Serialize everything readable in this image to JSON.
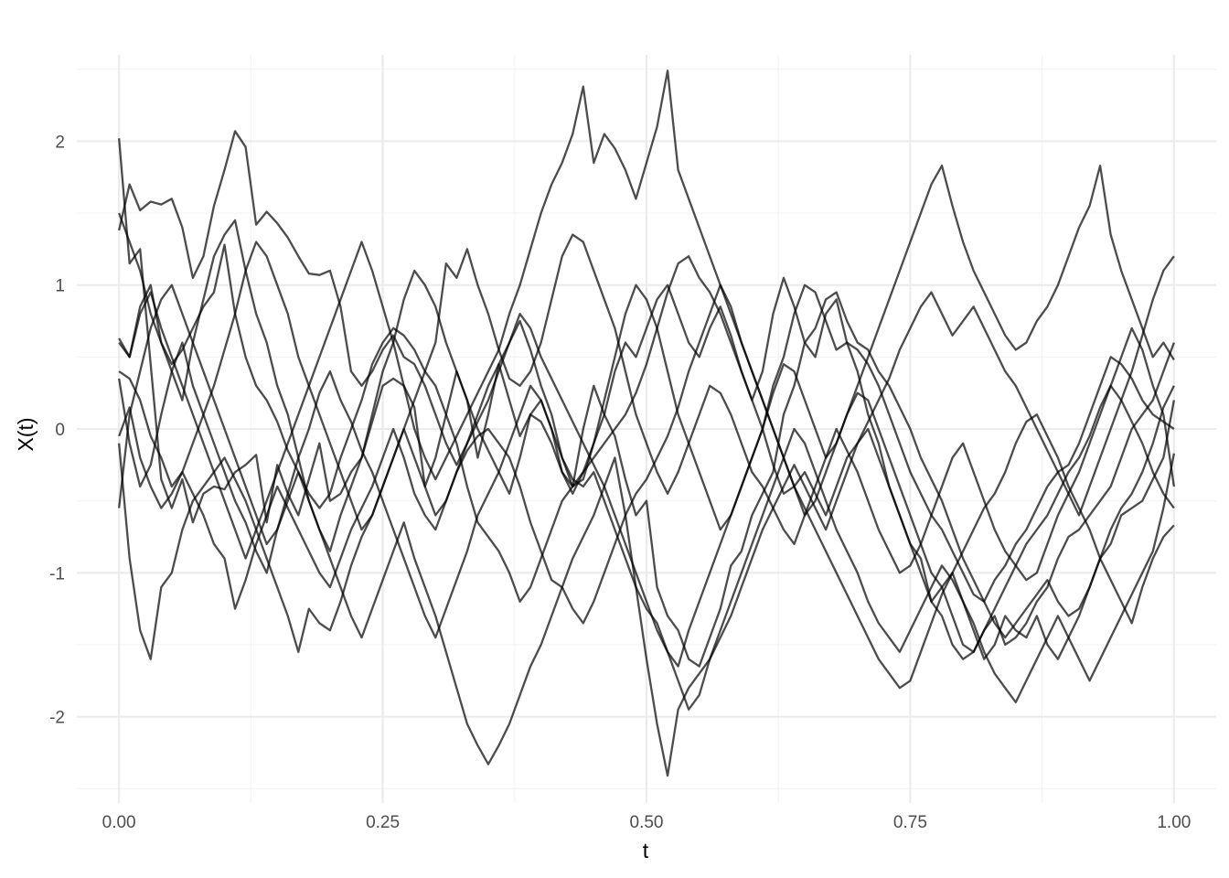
{
  "chart_data": {
    "type": "line",
    "title": "",
    "xlabel": "t",
    "ylabel": "X(t)",
    "xlim": [
      -0.04,
      1.04
    ],
    "ylim": [
      -2.6,
      2.6
    ],
    "x_ticks": [
      0,
      0.25,
      0.5,
      0.75,
      1
    ],
    "x_tick_labels": [
      "0.00",
      "0.25",
      "0.50",
      "0.75",
      "1.00"
    ],
    "y_ticks": [
      -2,
      -1,
      0,
      1,
      2
    ],
    "y_tick_labels": [
      "-2",
      "-1",
      "0",
      "1",
      "2"
    ],
    "grid": true,
    "legend": "none",
    "line_color": "#000000",
    "line_opacity": 0.7,
    "x_step": 0.01,
    "series": [
      {
        "values": [
          2.02,
          1.15,
          1.25,
          0.45,
          -0.35,
          -0.55,
          -0.35,
          -0.65,
          -0.45,
          -0.4,
          -0.42,
          -0.3,
          -0.25,
          -0.18,
          -0.65,
          -0.25,
          -0.45,
          -0.6,
          -0.35,
          -0.1,
          -0.5,
          -0.45,
          -0.3,
          -0.2,
          0.05,
          0.3,
          0.35,
          0.3,
          0.15,
          -0.4,
          -0.2,
          0.1,
          0.4,
          0.2,
          -0.2,
          0.1,
          0.45,
          0.2,
          -0.05,
          0.1,
          0.05,
          -0.1,
          -0.3,
          -0.4,
          0.0,
          0.3,
          0.1,
          -0.05,
          -0.35,
          -0.6,
          -0.5,
          -1.1,
          -1.3,
          -1.4,
          -1.6,
          -1.65,
          -1.45,
          -1.25,
          -0.95,
          -0.85,
          -0.6,
          -0.45,
          -0.3,
          0.1,
          0.3,
          0.6,
          0.5,
          0.8,
          0.9,
          0.6,
          0.4,
          0.1,
          -0.1,
          -0.4,
          -0.6,
          -0.8,
          -0.9,
          -1.2,
          -1.1,
          -1.0,
          -1.2,
          -1.4,
          -1.6,
          -1.5,
          -1.3,
          -1.4,
          -1.45,
          -1.3,
          -1.5,
          -1.6,
          -1.45,
          -1.3,
          -1.1,
          -0.9,
          -0.8,
          -0.6,
          -0.55,
          -0.5,
          -0.35,
          -0.2,
          0.2
        ]
      },
      {
        "values": [
          1.5,
          1.3,
          1.1,
          0.8,
          0.6,
          0.4,
          0.2,
          0.6,
          0.9,
          1.2,
          1.35,
          1.45,
          1.1,
          0.8,
          0.6,
          0.3,
          0.1,
          -0.2,
          -0.5,
          -0.7,
          -0.85,
          -0.6,
          -0.4,
          -0.2,
          0.1,
          0.4,
          0.6,
          0.9,
          1.1,
          1.0,
          0.85,
          0.6,
          0.4,
          0.2,
          0.0,
          -0.15,
          -0.3,
          -0.45,
          -0.2,
          0.1,
          0.2,
          0.0,
          -0.3,
          -0.45,
          -0.3,
          -0.1,
          0.2,
          0.5,
          0.8,
          1.0,
          0.9,
          0.7,
          0.4,
          0.1,
          -0.1,
          -0.3,
          -0.5,
          -0.7,
          -0.6,
          -0.4,
          -0.2,
          0.0,
          0.3,
          0.5,
          0.8,
          1.0,
          0.95,
          0.75,
          0.55,
          0.6,
          0.55,
          0.45,
          0.3,
          0.1,
          -0.1,
          -0.3,
          -0.45,
          -0.6,
          -0.7,
          -0.85,
          -1.0,
          -1.15,
          -1.2,
          -1.05,
          -0.95,
          -0.8,
          -0.7,
          -0.55,
          -0.4,
          -0.3,
          -0.25,
          -0.1,
          0.1,
          0.3,
          0.5,
          0.45,
          0.35,
          0.2,
          0.1,
          0.05,
          0.0
        ]
      },
      {
        "values": [
          1.38,
          1.7,
          1.52,
          1.58,
          1.56,
          1.6,
          1.4,
          1.05,
          1.2,
          1.55,
          1.8,
          2.07,
          1.96,
          1.42,
          1.51,
          1.43,
          1.33,
          1.2,
          1.08,
          1.07,
          1.1,
          0.85,
          0.4,
          0.3,
          0.4,
          0.55,
          0.65,
          0.5,
          0.45,
          0.3,
          0.1,
          -0.1,
          -0.25,
          -0.1,
          0.05,
          0.2,
          0.4,
          0.6,
          0.75,
          0.55,
          0.3,
          0.1,
          -0.2,
          -0.4,
          -0.35,
          -0.1,
          0.1,
          0.4,
          0.6,
          0.5,
          0.7,
          0.9,
          1.0,
          0.8,
          0.6,
          0.5,
          0.7,
          0.85,
          0.65,
          0.4,
          0.2,
          0.4,
          0.8,
          1.05,
          0.85,
          0.6,
          0.7,
          0.9,
          0.95,
          0.75,
          0.6,
          0.55,
          0.4,
          0.3,
          0.15,
          0.0,
          -0.2,
          -0.35,
          -0.5,
          -0.7,
          -0.9,
          -1.05,
          -1.2,
          -1.35,
          -1.45,
          -1.35,
          -1.25,
          -1.15,
          -1.05,
          -1.2,
          -1.3,
          -1.25,
          -1.1,
          -0.9,
          -0.7,
          -0.55,
          -0.45,
          -0.3,
          -0.1,
          0.15,
          0.3
        ]
      },
      {
        "values": [
          0.63,
          0.5,
          0.85,
          1.0,
          0.6,
          0.45,
          0.55,
          0.7,
          0.85,
          0.95,
          1.28,
          0.8,
          0.5,
          0.3,
          0.2,
          0.05,
          -0.15,
          -0.3,
          -0.45,
          -0.55,
          -0.45,
          -0.2,
          0.0,
          0.2,
          0.45,
          0.6,
          0.7,
          0.65,
          0.55,
          0.4,
          0.3,
          0.1,
          -0.1,
          -0.4,
          -0.65,
          -0.75,
          -0.85,
          -1.0,
          -1.2,
          -1.1,
          -0.9,
          -0.7,
          -0.5,
          -0.4,
          -0.3,
          -0.2,
          -0.1,
          0.0,
          0.1,
          0.25,
          0.45,
          0.7,
          0.95,
          1.15,
          1.2,
          1.05,
          0.95,
          0.8,
          0.6,
          0.4,
          0.2,
          0.0,
          -0.25,
          -0.45,
          -0.4,
          -0.3,
          -0.45,
          -0.6,
          -0.4,
          -0.2,
          -0.1,
          0.0,
          -0.2,
          -0.4,
          -0.6,
          -0.8,
          -1.0,
          -1.2,
          -1.3,
          -1.5,
          -1.6,
          -1.55,
          -1.4,
          -1.3,
          -1.5,
          -1.45,
          -1.35,
          -1.2,
          -1.1,
          -0.9,
          -0.75,
          -0.7,
          -0.6,
          -0.5,
          -0.4,
          -0.2,
          0.0,
          0.1,
          0.2,
          0.4,
          0.6
        ]
      },
      {
        "values": [
          0.4,
          0.35,
          0.2,
          -0.05,
          -0.2,
          -0.4,
          -0.3,
          -0.1,
          0.1,
          0.3,
          0.55,
          0.8,
          1.1,
          1.3,
          1.2,
          1.0,
          0.8,
          0.5,
          0.3,
          0.1,
          -0.1,
          -0.3,
          -0.5,
          -0.7,
          -0.6,
          -0.4,
          -0.2,
          0.0,
          0.2,
          0.4,
          0.6,
          1.15,
          1.05,
          1.25,
          1.0,
          0.8,
          0.55,
          0.35,
          0.3,
          0.4,
          0.6,
          0.9,
          1.2,
          1.35,
          1.3,
          1.1,
          0.9,
          0.7,
          0.4,
          0.1,
          -0.1,
          -0.3,
          -0.45,
          -0.3,
          -0.1,
          0.1,
          0.3,
          0.25,
          0.1,
          -0.1,
          -0.3,
          -0.4,
          -0.55,
          -0.7,
          -0.8,
          -0.6,
          -0.4,
          -0.2,
          0.0,
          -0.15,
          -0.3,
          -0.5,
          -0.7,
          -0.85,
          -1.0,
          -0.95,
          -0.8,
          -0.6,
          -0.4,
          -0.2,
          -0.1,
          -0.3,
          -0.5,
          -0.7,
          -0.85,
          -0.95,
          -1.05,
          -1.0,
          -0.8,
          -0.6,
          -0.45,
          -0.3,
          -0.1,
          0.1,
          0.3,
          0.5,
          0.7,
          0.55,
          0.3,
          0.1,
          -0.4
        ]
      },
      {
        "values": [
          0.35,
          -0.1,
          -0.4,
          -0.25,
          0.1,
          0.4,
          0.6,
          0.3,
          0.1,
          -0.1,
          -0.3,
          -0.5,
          -0.65,
          -0.85,
          -1.0,
          -0.7,
          -0.45,
          -0.2,
          0.0,
          0.25,
          0.4,
          0.2,
          0.05,
          -0.15,
          -0.3,
          -0.5,
          -0.7,
          -0.9,
          -1.1,
          -1.3,
          -1.45,
          -1.25,
          -1.05,
          -0.85,
          -0.6,
          -0.45,
          -0.3,
          -0.1,
          0.1,
          0.3,
          0.2,
          0.0,
          -0.2,
          -0.35,
          -0.4,
          -0.3,
          -0.5,
          -0.7,
          -0.9,
          -1.1,
          -1.25,
          -1.35,
          -1.55,
          -1.65,
          -1.4,
          -1.2,
          -1.0,
          -0.8,
          -0.6,
          -0.4,
          -0.2,
          0.0,
          0.25,
          0.45,
          0.4,
          0.2,
          0.0,
          -0.2,
          -0.1,
          0.1,
          0.25,
          0.2,
          0.0,
          -0.2,
          -0.4,
          -0.6,
          -0.8,
          -1.0,
          -1.1,
          -1.3,
          -1.5,
          -1.55,
          -1.4,
          -1.25,
          -1.1,
          -0.95,
          -0.8,
          -0.7,
          -0.6,
          -0.45,
          -0.3,
          -0.2,
          -0.05,
          0.15,
          0.3,
          0.2,
          0.05,
          -0.1,
          -0.3,
          -0.45,
          -0.55
        ]
      },
      {
        "values": [
          -0.05,
          0.15,
          -0.2,
          -0.4,
          -0.55,
          -0.45,
          -0.3,
          -0.45,
          -0.6,
          -0.8,
          -0.9,
          -1.25,
          -1.05,
          -0.8,
          -0.6,
          -0.4,
          -0.55,
          -0.7,
          -0.85,
          -1.0,
          -1.1,
          -0.9,
          -0.7,
          -0.55,
          -0.4,
          -0.2,
          0.0,
          -0.2,
          -0.45,
          -0.6,
          -0.7,
          -0.5,
          -0.3,
          -0.15,
          -0.05,
          0.0,
          -0.1,
          -0.2,
          -0.4,
          -0.65,
          -0.85,
          -1.05,
          -1.1,
          -1.25,
          -1.35,
          -1.2,
          -1.0,
          -0.8,
          -0.6,
          -0.45,
          -0.35,
          -0.2,
          -0.05,
          0.15,
          0.4,
          0.6,
          0.8,
          1.0,
          0.85,
          0.6,
          0.4,
          0.2,
          0.0,
          -0.2,
          -0.4,
          -0.55,
          -0.7,
          -0.85,
          -1.0,
          -1.15,
          -1.3,
          -1.45,
          -1.6,
          -1.7,
          -1.8,
          -1.75,
          -1.55,
          -1.35,
          -1.15,
          -1.0,
          -0.85,
          -0.7,
          -0.55,
          -0.45,
          -0.3,
          -0.1,
          0.05,
          0.1,
          -0.05,
          -0.2,
          -0.4,
          -0.55,
          -0.7,
          -0.9,
          -1.05,
          -1.2,
          -1.35,
          -1.1,
          -0.9,
          -0.75,
          -0.67
        ]
      },
      {
        "values": [
          -0.1,
          -0.9,
          -1.4,
          -1.6,
          -1.1,
          -1.0,
          -0.7,
          -0.5,
          -0.4,
          -0.3,
          -0.2,
          -0.35,
          -0.5,
          -0.7,
          -0.9,
          -1.1,
          -1.3,
          -1.55,
          -1.25,
          -1.35,
          -1.4,
          -1.2,
          -0.95,
          -0.75,
          -0.6,
          -0.4,
          -0.2,
          0.0,
          -0.2,
          -0.4,
          -0.6,
          -0.5,
          -0.3,
          -0.1,
          0.1,
          0.3,
          0.45,
          0.6,
          0.8,
          0.7,
          0.5,
          0.35,
          0.2,
          0.05,
          -0.1,
          -0.25,
          -0.4,
          -0.6,
          -0.8,
          -1.0,
          -1.2,
          -1.4,
          -1.55,
          -1.75,
          -1.95,
          -1.85,
          -1.6,
          -1.4,
          -1.2,
          -1.0,
          -0.8,
          -0.6,
          -0.4,
          -0.2,
          0.0,
          -0.1,
          -0.3,
          -0.5,
          -0.7,
          -0.85,
          -1.0,
          -1.2,
          -1.35,
          -1.45,
          -1.55,
          -1.4,
          -1.25,
          -1.1,
          -0.95,
          -1.05,
          -1.2,
          -1.35,
          -1.55,
          -1.7,
          -1.8,
          -1.9,
          -1.75,
          -1.6,
          -1.45,
          -1.3,
          -1.45,
          -1.6,
          -1.75,
          -1.6,
          -1.45,
          -1.3,
          -1.15,
          -1.0,
          -0.85,
          -0.55,
          -0.17
        ]
      },
      {
        "values": [
          -0.55,
          0.1,
          0.4,
          0.7,
          0.9,
          1.0,
          0.8,
          0.6,
          0.4,
          0.2,
          0.0,
          -0.2,
          -0.4,
          -0.6,
          -0.8,
          -0.7,
          -0.5,
          -0.3,
          -0.5,
          -0.7,
          -0.9,
          -1.1,
          -1.3,
          -1.45,
          -1.25,
          -1.05,
          -0.85,
          -0.65,
          -0.9,
          -1.1,
          -1.3,
          -1.55,
          -1.8,
          -2.05,
          -2.2,
          -2.33,
          -2.2,
          -2.05,
          -1.85,
          -1.65,
          -1.5,
          -1.3,
          -1.1,
          -0.9,
          -0.75,
          -0.6,
          -0.4,
          -0.2,
          -0.6,
          -1.1,
          -1.6,
          -2.05,
          -2.41,
          -1.95,
          -1.8,
          -1.7,
          -1.6,
          -1.45,
          -1.3,
          -1.1,
          -0.9,
          -0.7,
          -0.55,
          -0.4,
          -0.25,
          -0.4,
          -0.55,
          -0.7,
          -0.5,
          -0.3,
          -0.1,
          0.05,
          0.2,
          0.35,
          0.55,
          0.7,
          0.85,
          0.95,
          0.8,
          0.65,
          0.75,
          0.85,
          0.7,
          0.55,
          0.4,
          0.3,
          0.15,
          0.0,
          -0.15,
          -0.3,
          -0.45,
          -0.6,
          -0.4,
          -0.2,
          0.0,
          0.2,
          0.4,
          0.65,
          0.9,
          1.1,
          1.2
        ]
      },
      {
        "values": [
          0.6,
          0.5,
          0.8,
          0.95,
          0.7,
          0.5,
          0.3,
          0.1,
          -0.1,
          -0.3,
          -0.5,
          -0.7,
          -0.9,
          -0.7,
          -0.5,
          -0.3,
          -0.1,
          0.1,
          0.3,
          0.5,
          0.7,
          0.9,
          1.1,
          1.3,
          1.1,
          0.85,
          0.6,
          0.3,
          0.0,
          -0.2,
          -0.35,
          -0.2,
          -0.05,
          0.1,
          0.25,
          0.4,
          0.55,
          0.8,
          1.0,
          1.25,
          1.5,
          1.7,
          1.85,
          2.05,
          2.38,
          1.85,
          2.05,
          1.95,
          1.8,
          1.6,
          1.85,
          2.1,
          2.49,
          1.8,
          1.6,
          1.4,
          1.2,
          1.0,
          0.8,
          0.6,
          0.4,
          0.2,
          0.0,
          -0.2,
          -0.4,
          -0.6,
          -0.5,
          -0.3,
          -0.1,
          0.1,
          0.3,
          0.5,
          0.7,
          0.9,
          1.1,
          1.3,
          1.5,
          1.7,
          1.83,
          1.55,
          1.3,
          1.1,
          0.95,
          0.8,
          0.65,
          0.55,
          0.6,
          0.75,
          0.85,
          1.0,
          1.2,
          1.4,
          1.55,
          1.83,
          1.35,
          1.1,
          0.9,
          0.7,
          0.5,
          0.6,
          0.48
        ]
      }
    ]
  }
}
